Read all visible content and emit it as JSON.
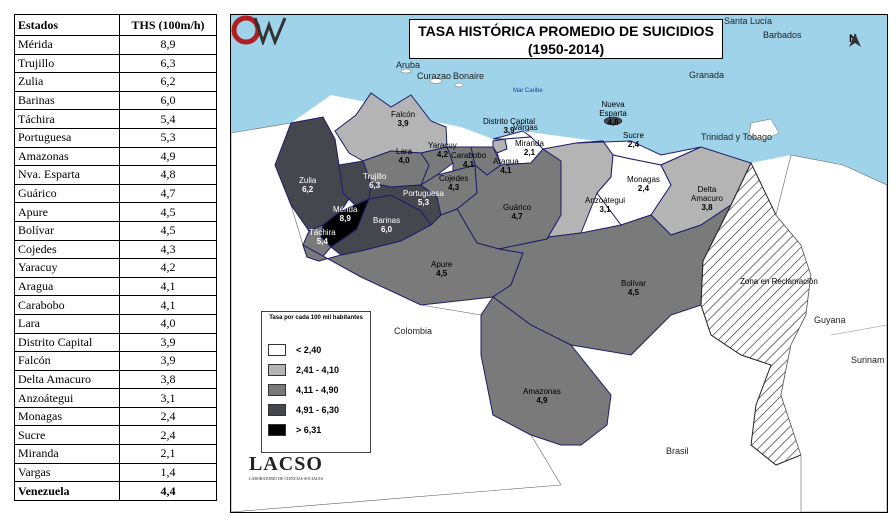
{
  "table": {
    "header": {
      "col1": "Estados",
      "col2": "THS (100m/h)"
    },
    "rows": [
      {
        "state": "Mérida",
        "value": "8,9"
      },
      {
        "state": "Trujillo",
        "value": "6,3"
      },
      {
        "state": "Zulia",
        "value": "6,2"
      },
      {
        "state": "Barinas",
        "value": "6,0"
      },
      {
        "state": "Táchira",
        "value": "5,4"
      },
      {
        "state": "Portuguesa",
        "value": "5,3"
      },
      {
        "state": "Amazonas",
        "value": "4,9"
      },
      {
        "state": "Nva. Esparta",
        "value": "4,8"
      },
      {
        "state": "Guárico",
        "value": "4,7"
      },
      {
        "state": "Apure",
        "value": "4,5"
      },
      {
        "state": "Bolívar",
        "value": "4,5"
      },
      {
        "state": "Cojedes",
        "value": "4,3"
      },
      {
        "state": "Yaracuy",
        "value": "4,2"
      },
      {
        "state": "Aragua",
        "value": "4,1"
      },
      {
        "state": "Carabobo",
        "value": "4,1"
      },
      {
        "state": "Lara",
        "value": "4,0"
      },
      {
        "state": "Distrito Capital",
        "value": "3,9"
      },
      {
        "state": "Falcón",
        "value": "3,9"
      },
      {
        "state": "Delta Amacuro",
        "value": "3,8"
      },
      {
        "state": "Anzoátegui",
        "value": "3,1"
      },
      {
        "state": "Monagas",
        "value": "2,4"
      },
      {
        "state": "Sucre",
        "value": "2,4"
      },
      {
        "state": "Miranda",
        "value": "2,1"
      },
      {
        "state": "Vargas",
        "value": "1,4"
      }
    ],
    "total": {
      "state": "Venezuela",
      "value": "4,4"
    }
  },
  "map": {
    "title_line1": "TASA HISTÓRICA PROMEDIO DE SUICIDIOS",
    "title_line2": "(1950-2014)",
    "compass": "N",
    "sea": "Mar Caribe",
    "countries": {
      "colombia": "Colombia",
      "brasil": "Brasil",
      "guyana": "Guyana",
      "surinam": "Surinam",
      "aruba": "Aruba",
      "curazao": "Curazao",
      "bonaire": "Bonaire",
      "granada": "Granada",
      "trinidad": "Trinidad y Tobago",
      "barbados": "Barbados",
      "santa_lucia": "Santa Lucía"
    },
    "zona": "Zona en Reclamación",
    "states": {
      "falcon": {
        "name": "Falcón",
        "value": "3,9"
      },
      "lara": {
        "name": "Lara",
        "value": "4,0"
      },
      "zulia": {
        "name": "Zulia",
        "value": "6,2"
      },
      "trujillo": {
        "name": "Trujillo",
        "value": "6,3"
      },
      "merida": {
        "name": "Mérida",
        "value": "8,9"
      },
      "tachira": {
        "name": "Táchira",
        "value": "5,4"
      },
      "barinas": {
        "name": "Barinas",
        "value": "6,0"
      },
      "portuguesa": {
        "name": "Portuguesa",
        "value": "5,3"
      },
      "yaracuy": {
        "name": "Yaracuy",
        "value": "4,2"
      },
      "carabobo": {
        "name": "Carabobo",
        "value": "4,1"
      },
      "cojedes": {
        "name": "Cojedes",
        "value": "4,3"
      },
      "distrito": {
        "name": "Distrito Capital",
        "value": "3,9"
      },
      "vargas": {
        "name": "Vargas",
        "value": ""
      },
      "miranda": {
        "name": "Miranda",
        "value": "2,1"
      },
      "aragua": {
        "name": "Aragua",
        "value": "4,1"
      },
      "guarico": {
        "name": "Guárico",
        "value": "4,7"
      },
      "anzoategui": {
        "name": "Anzoátegui",
        "value": "3,1"
      },
      "monagas": {
        "name": "Monagas",
        "value": "2,4"
      },
      "sucre": {
        "name": "Sucre",
        "value": "2,4"
      },
      "nueva_esparta": {
        "name": "Nueva Esparta",
        "value": "4,8"
      },
      "delta": {
        "name": "Delta Amacuro",
        "value": "3,8"
      },
      "apure": {
        "name": "Apure",
        "value": "4,5"
      },
      "bolivar": {
        "name": "Bolívar",
        "value": "4,5"
      },
      "amazonas": {
        "name": "Amazonas",
        "value": "4,9"
      }
    },
    "legend": {
      "title": "Tasa por cada 100 mil habitantes",
      "items": [
        "< 2,40",
        "2,41 - 4,10",
        "4,11 - 4,90",
        "4,91 - 6,30",
        "> 6,31"
      ],
      "colors": [
        "#ffffff",
        "#b4b4b4",
        "#7a7a7a",
        "#46464e",
        "#000000"
      ]
    },
    "logo_text": "LACSO",
    "logo_sub": "LABORATORIO DE CIENCIAS SOCIALES"
  }
}
